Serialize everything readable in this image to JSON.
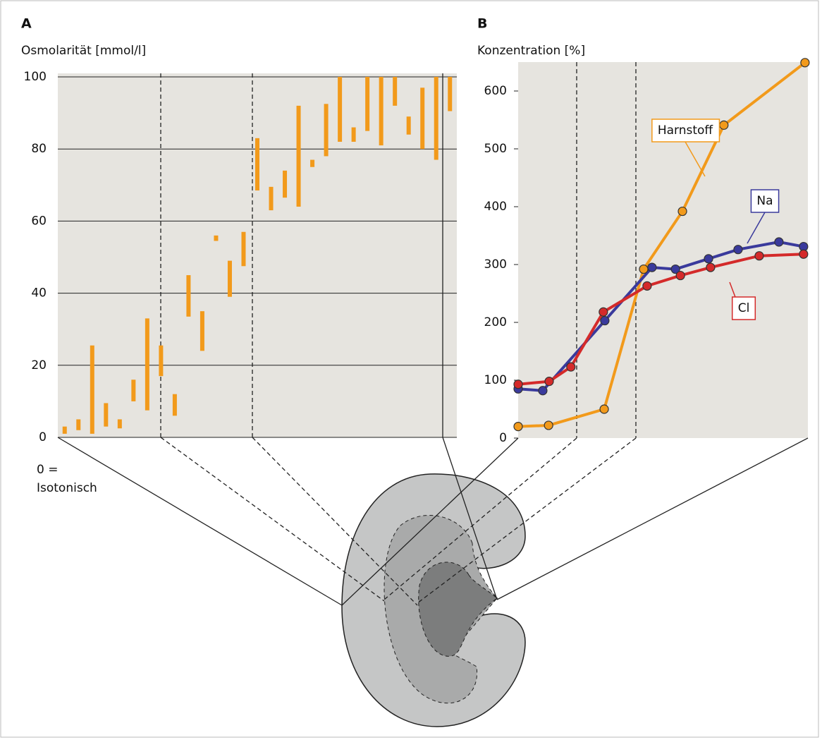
{
  "chart_data": [
    {
      "type": "range",
      "title": "A",
      "y_label": "Osmolarität [mmol/l]",
      "annotation": [
        "0 =",
        "Isotonisch"
      ],
      "categories": [
        null,
        null,
        null,
        null,
        null,
        null,
        null,
        null,
        null,
        null,
        null,
        null,
        null,
        null,
        null,
        null,
        null,
        null,
        null,
        null,
        null,
        null,
        null,
        null,
        null,
        null,
        null,
        null,
        null
      ],
      "values": [
        [
          1,
          3
        ],
        [
          2,
          5
        ],
        [
          1,
          25.5
        ],
        [
          3,
          9.5
        ],
        [
          2.5,
          5
        ],
        [
          10,
          16
        ],
        [
          7.5,
          33
        ],
        [
          17,
          25.5
        ],
        [
          6,
          12
        ],
        [
          33.5,
          45
        ],
        [
          24,
          35
        ],
        [
          54.5,
          56
        ],
        [
          39,
          49
        ],
        [
          47.5,
          57
        ],
        [
          68.5,
          83
        ],
        [
          63,
          69.5
        ],
        [
          66.5,
          74
        ],
        [
          64,
          92
        ],
        [
          75,
          77
        ],
        [
          78,
          92.5
        ],
        [
          82,
          100
        ],
        [
          82,
          86
        ],
        [
          85,
          100
        ],
        [
          81,
          100
        ],
        [
          92,
          100
        ],
        [
          84,
          89
        ],
        [
          80,
          97
        ],
        [
          77,
          100
        ],
        [
          90.5,
          100
        ]
      ],
      "color": "#f29a1b",
      "ylim": [
        0,
        100
      ],
      "yticks": [
        0,
        20,
        40,
        60,
        80,
        100
      ],
      "grid": true
    },
    {
      "type": "line",
      "title": "B",
      "y_label": "Konzentration [%]",
      "xlim": [
        0,
        100
      ],
      "ylim": [
        0,
        650
      ],
      "yticks": [
        0,
        100,
        200,
        300,
        400,
        500,
        600
      ],
      "grid": false,
      "series": [
        {
          "name": "Harnstoff",
          "color": "#f29a1b",
          "x": [
            0,
            10.5,
            29.7,
            43.3,
            56.7,
            71,
            99
          ],
          "values": [
            20,
            22,
            50,
            292,
            392,
            541,
            649
          ]
        },
        {
          "name": "Na",
          "color": "#3a3a9c",
          "x": [
            0,
            8.5,
            29.9,
            46.2,
            54.3,
            65.7,
            75.9,
            90,
            98.5
          ],
          "values": [
            85,
            82,
            203,
            295,
            292,
            310,
            326,
            339,
            331
          ]
        },
        {
          "name": "Cl",
          "color": "#d42a2a",
          "x": [
            0,
            10.7,
            18.2,
            29.4,
            44.5,
            56,
            66.4,
            83.2,
            98.5
          ],
          "values": [
            93,
            98,
            123,
            218,
            263,
            281,
            295,
            315,
            318
          ]
        }
      ]
    }
  ]
}
